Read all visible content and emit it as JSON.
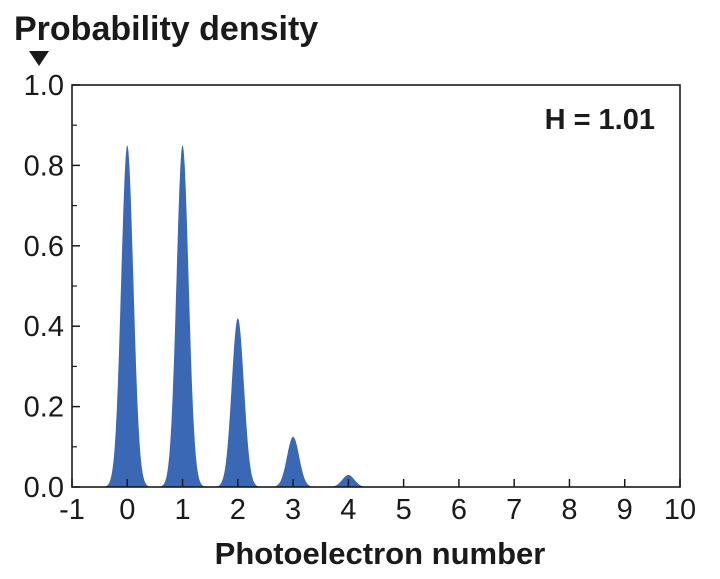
{
  "chart_data": {
    "type": "area",
    "ylabel": "Probability density",
    "xlabel": "Photoelectron number",
    "annotation": "H = 1.01",
    "xlim": [
      -1,
      10
    ],
    "ylim": [
      0,
      1.0
    ],
    "xticks": [
      "-1",
      "0",
      "1",
      "2",
      "3",
      "4",
      "5",
      "6",
      "7",
      "8",
      "9",
      "10"
    ],
    "yticks": [
      "0.0",
      "0.2",
      "0.4",
      "0.6",
      "0.8",
      "1.0"
    ],
    "grid": false,
    "series": [
      {
        "peaks_x": [
          0,
          1,
          2,
          3,
          4
        ],
        "peaks_y": [
          0.85,
          0.85,
          0.42,
          0.125,
          0.03
        ],
        "color": "#3a68b4"
      }
    ]
  }
}
